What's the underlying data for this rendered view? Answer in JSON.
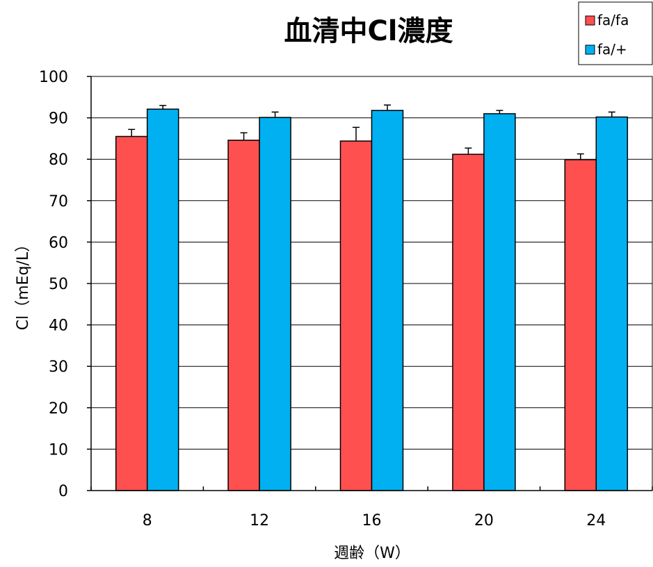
{
  "chart_data": {
    "type": "bar",
    "title": "血清中Cl濃度",
    "xlabel": "週齢（W）",
    "ylabel": "Cl（mEq/L）",
    "categories": [
      "8",
      "12",
      "16",
      "20",
      "24"
    ],
    "ylim": [
      0,
      100
    ],
    "yticks": [
      0,
      10,
      20,
      30,
      40,
      50,
      60,
      70,
      80,
      90,
      100
    ],
    "grid": true,
    "legend_position": "top-right",
    "series": [
      {
        "name": "fa/fa",
        "color": "#ff5050",
        "values": [
          85.5,
          84.6,
          84.4,
          81.2,
          79.9
        ],
        "errors": [
          1.7,
          1.8,
          3.3,
          1.5,
          1.4
        ]
      },
      {
        "name": "fa/+",
        "color": "#00b0f0",
        "values": [
          92.1,
          90.1,
          91.8,
          91.0,
          90.2
        ],
        "errors": [
          0.9,
          1.3,
          1.3,
          0.8,
          1.2
        ]
      }
    ]
  }
}
